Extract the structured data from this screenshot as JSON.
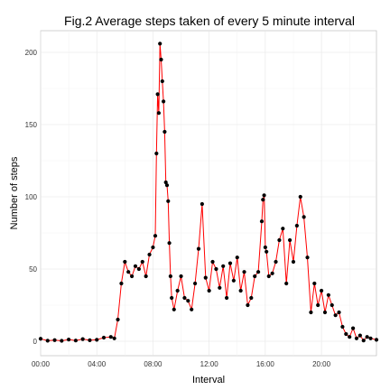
{
  "chart_data": {
    "type": "line",
    "title": "Fig.2 Average steps taken of every 5 minute interval",
    "xlabel": "Interval",
    "ylabel": "Number of steps",
    "x_ticks": [
      "00:00",
      "04:00",
      "08:00",
      "12:00",
      "16:00",
      "20:00"
    ],
    "x_tick_minutes": [
      0,
      240,
      480,
      720,
      960,
      1200
    ],
    "y_ticks": [
      0,
      50,
      100,
      150,
      200
    ],
    "xlim": [
      0,
      1435
    ],
    "ylim": [
      -10,
      215
    ],
    "grid": true,
    "x_minutes": [
      0,
      30,
      60,
      90,
      120,
      150,
      180,
      210,
      240,
      270,
      300,
      315,
      330,
      345,
      360,
      375,
      390,
      405,
      420,
      435,
      450,
      465,
      480,
      490,
      495,
      500,
      505,
      510,
      515,
      520,
      525,
      530,
      535,
      540,
      545,
      550,
      555,
      560,
      570,
      585,
      600,
      615,
      630,
      645,
      660,
      675,
      690,
      705,
      720,
      735,
      750,
      765,
      780,
      795,
      810,
      825,
      840,
      855,
      870,
      885,
      900,
      915,
      930,
      945,
      950,
      955,
      960,
      965,
      975,
      990,
      1005,
      1020,
      1035,
      1050,
      1065,
      1080,
      1095,
      1110,
      1125,
      1140,
      1155,
      1170,
      1185,
      1200,
      1215,
      1230,
      1245,
      1260,
      1275,
      1290,
      1305,
      1320,
      1335,
      1350,
      1365,
      1380,
      1395,
      1410,
      1435
    ],
    "values": [
      1.7,
      0.4,
      0.8,
      0.3,
      1.2,
      0.5,
      1.5,
      0.7,
      1.0,
      2.5,
      3.0,
      2.0,
      15.0,
      40.0,
      55.0,
      48.0,
      45.0,
      52.0,
      50.0,
      55.0,
      45.0,
      60.0,
      65.0,
      73.0,
      130.0,
      171.0,
      158.0,
      206.0,
      195.0,
      180.0,
      166.0,
      145.0,
      110.0,
      108.0,
      97.0,
      68.0,
      45.0,
      30.0,
      22.0,
      35.0,
      45.0,
      30.0,
      28.0,
      22.0,
      40.0,
      64.0,
      95.0,
      44.0,
      35.0,
      55.0,
      50.0,
      37.0,
      52.0,
      30.0,
      54.0,
      42.0,
      58.0,
      35.0,
      48.0,
      25.0,
      30.0,
      45.0,
      48.0,
      83.0,
      98.0,
      101.0,
      65.0,
      62.0,
      45.0,
      47.0,
      55.0,
      70.0,
      78.0,
      40.0,
      70.0,
      55.0,
      80.0,
      100.0,
      86.0,
      58.0,
      20.0,
      40.0,
      25.0,
      35.0,
      20.0,
      32.0,
      25.0,
      18.0,
      20.0,
      10.0,
      5.0,
      3.0,
      9.0,
      2.0,
      4.0,
      0.5,
      3.0,
      2.0,
      1.0
    ],
    "line_color": "#ff0000",
    "point_color": "#000000"
  }
}
